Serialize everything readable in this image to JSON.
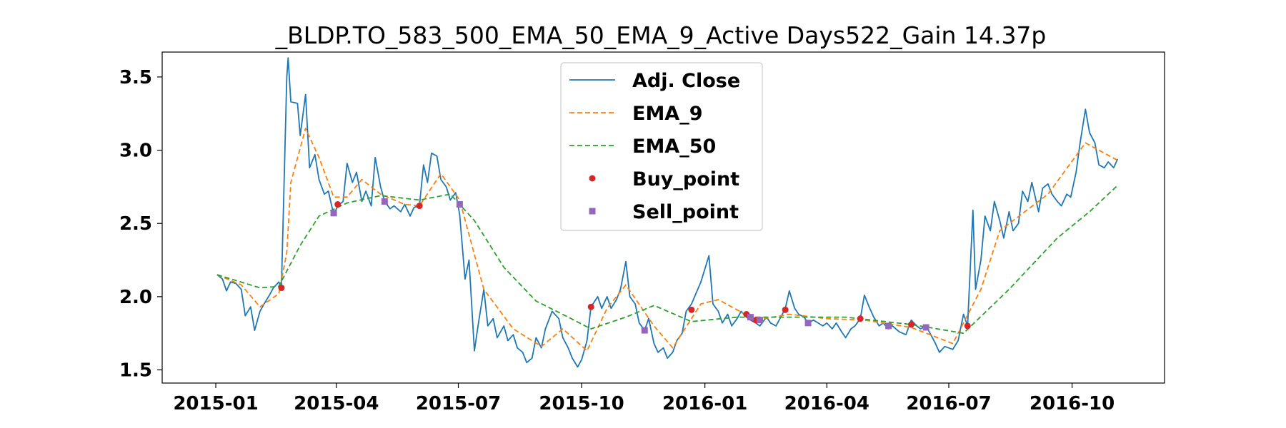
{
  "chart_data": {
    "type": "line",
    "title": "_BLDP.TO_583_500_EMA_50_EMA_9_Active Days522_Gain  14.37p",
    "xlabel": "",
    "ylabel": "",
    "x_ticks": [
      "2015-01",
      "2015-04",
      "2015-07",
      "2015-10",
      "2016-01",
      "2016-04",
      "2016-07",
      "2016-10"
    ],
    "y_ticks": [
      "1.5",
      "2.0",
      "2.5",
      "3.0",
      "3.5"
    ],
    "xlim": [
      "2014-11-22",
      "2016-12-09"
    ],
    "ylim": [
      1.41,
      3.67
    ],
    "grid": false,
    "legend_position": "top-center",
    "series": [
      {
        "name": "Adj. Close",
        "style": "solid",
        "color": "#1f77b4",
        "points": [
          [
            "2015-01-02",
            2.15
          ],
          [
            "2015-01-06",
            2.12
          ],
          [
            "2015-01-09",
            2.04
          ],
          [
            "2015-01-12",
            2.1
          ],
          [
            "2015-01-16",
            2.09
          ],
          [
            "2015-01-20",
            2.05
          ],
          [
            "2015-01-23",
            1.87
          ],
          [
            "2015-01-27",
            1.93
          ],
          [
            "2015-01-30",
            1.77
          ],
          [
            "2015-02-03",
            1.9
          ],
          [
            "2015-02-06",
            1.95
          ],
          [
            "2015-02-10",
            2.01
          ],
          [
            "2015-02-13",
            2.06
          ],
          [
            "2015-02-17",
            2.1
          ],
          [
            "2015-02-19",
            2.06
          ],
          [
            "2015-02-23",
            3.5
          ],
          [
            "2015-02-24",
            3.63
          ],
          [
            "2015-02-26",
            3.33
          ],
          [
            "2015-03-03",
            3.32
          ],
          [
            "2015-03-05",
            3.1
          ],
          [
            "2015-03-09",
            3.38
          ],
          [
            "2015-03-12",
            2.88
          ],
          [
            "2015-03-16",
            2.97
          ],
          [
            "2015-03-19",
            2.8
          ],
          [
            "2015-03-23",
            2.7
          ],
          [
            "2015-03-26",
            2.72
          ],
          [
            "2015-03-30",
            2.56
          ],
          [
            "2015-04-02",
            2.62
          ],
          [
            "2015-04-06",
            2.65
          ],
          [
            "2015-04-09",
            2.91
          ],
          [
            "2015-04-13",
            2.78
          ],
          [
            "2015-04-16",
            2.85
          ],
          [
            "2015-04-20",
            2.65
          ],
          [
            "2015-04-23",
            2.72
          ],
          [
            "2015-04-27",
            2.62
          ],
          [
            "2015-04-30",
            2.95
          ],
          [
            "2015-05-04",
            2.75
          ],
          [
            "2015-05-07",
            2.65
          ],
          [
            "2015-05-11",
            2.6
          ],
          [
            "2015-05-14",
            2.62
          ],
          [
            "2015-05-19",
            2.58
          ],
          [
            "2015-05-22",
            2.63
          ],
          [
            "2015-05-26",
            2.55
          ],
          [
            "2015-05-29",
            2.61
          ],
          [
            "2015-06-02",
            2.62
          ],
          [
            "2015-06-05",
            2.9
          ],
          [
            "2015-06-08",
            2.78
          ],
          [
            "2015-06-11",
            2.98
          ],
          [
            "2015-06-15",
            2.96
          ],
          [
            "2015-06-18",
            2.8
          ],
          [
            "2015-06-22",
            2.75
          ],
          [
            "2015-06-25",
            2.66
          ],
          [
            "2015-06-29",
            2.71
          ],
          [
            "2015-07-02",
            2.56
          ],
          [
            "2015-07-06",
            2.12
          ],
          [
            "2015-07-09",
            2.25
          ],
          [
            "2015-07-13",
            1.63
          ],
          [
            "2015-07-16",
            1.82
          ],
          [
            "2015-07-20",
            2.05
          ],
          [
            "2015-07-23",
            1.8
          ],
          [
            "2015-07-27",
            1.85
          ],
          [
            "2015-07-30",
            1.72
          ],
          [
            "2015-08-04",
            1.8
          ],
          [
            "2015-08-07",
            1.7
          ],
          [
            "2015-08-11",
            1.74
          ],
          [
            "2015-08-14",
            1.65
          ],
          [
            "2015-08-18",
            1.62
          ],
          [
            "2015-08-21",
            1.55
          ],
          [
            "2015-08-25",
            1.58
          ],
          [
            "2015-08-28",
            1.72
          ],
          [
            "2015-09-01",
            1.65
          ],
          [
            "2015-09-04",
            1.78
          ],
          [
            "2015-09-09",
            1.9
          ],
          [
            "2015-09-14",
            1.85
          ],
          [
            "2015-09-17",
            1.72
          ],
          [
            "2015-09-21",
            1.65
          ],
          [
            "2015-09-24",
            1.58
          ],
          [
            "2015-09-28",
            1.52
          ],
          [
            "2015-10-01",
            1.57
          ],
          [
            "2015-10-05",
            1.7
          ],
          [
            "2015-10-08",
            1.93
          ],
          [
            "2015-10-13",
            2.0
          ],
          [
            "2015-10-16",
            1.92
          ],
          [
            "2015-10-20",
            2.0
          ],
          [
            "2015-10-23",
            1.92
          ],
          [
            "2015-10-27",
            1.98
          ],
          [
            "2015-10-30",
            2.05
          ],
          [
            "2015-11-03",
            2.24
          ],
          [
            "2015-11-06",
            2.0
          ],
          [
            "2015-11-10",
            1.95
          ],
          [
            "2015-11-13",
            1.82
          ],
          [
            "2015-11-17",
            1.77
          ],
          [
            "2015-11-20",
            1.85
          ],
          [
            "2015-11-24",
            1.68
          ],
          [
            "2015-11-27",
            1.62
          ],
          [
            "2015-12-01",
            1.65
          ],
          [
            "2015-12-04",
            1.58
          ],
          [
            "2015-12-08",
            1.62
          ],
          [
            "2015-12-11",
            1.7
          ],
          [
            "2015-12-15",
            1.75
          ],
          [
            "2015-12-18",
            1.9
          ],
          [
            "2015-12-22",
            1.95
          ],
          [
            "2015-12-29",
            2.1
          ],
          [
            "2016-01-04",
            2.28
          ],
          [
            "2016-01-07",
            1.95
          ],
          [
            "2016-01-11",
            1.9
          ],
          [
            "2016-01-14",
            1.82
          ],
          [
            "2016-01-18",
            1.88
          ],
          [
            "2016-01-21",
            1.8
          ],
          [
            "2016-01-25",
            1.85
          ],
          [
            "2016-01-28",
            1.9
          ],
          [
            "2016-02-01",
            1.86
          ],
          [
            "2016-02-04",
            1.84
          ],
          [
            "2016-02-08",
            1.82
          ],
          [
            "2016-02-11",
            1.8
          ],
          [
            "2016-02-16",
            1.86
          ],
          [
            "2016-02-19",
            1.82
          ],
          [
            "2016-02-23",
            1.8
          ],
          [
            "2016-02-26",
            1.85
          ],
          [
            "2016-03-01",
            1.92
          ],
          [
            "2016-03-04",
            2.04
          ],
          [
            "2016-03-08",
            1.92
          ],
          [
            "2016-03-11",
            1.88
          ],
          [
            "2016-03-15",
            1.86
          ],
          [
            "2016-03-18",
            1.82
          ],
          [
            "2016-03-22",
            1.84
          ],
          [
            "2016-03-29",
            1.8
          ],
          [
            "2016-04-01",
            1.82
          ],
          [
            "2016-04-05",
            1.78
          ],
          [
            "2016-04-08",
            1.82
          ],
          [
            "2016-04-12",
            1.76
          ],
          [
            "2016-04-15",
            1.72
          ],
          [
            "2016-04-19",
            1.78
          ],
          [
            "2016-04-22",
            1.8
          ],
          [
            "2016-04-26",
            1.85
          ],
          [
            "2016-04-29",
            2.01
          ],
          [
            "2016-05-03",
            1.92
          ],
          [
            "2016-05-06",
            1.86
          ],
          [
            "2016-05-10",
            1.8
          ],
          [
            "2016-05-13",
            1.82
          ],
          [
            "2016-05-17",
            1.78
          ],
          [
            "2016-05-20",
            1.8
          ],
          [
            "2016-05-25",
            1.76
          ],
          [
            "2016-05-30",
            1.74
          ],
          [
            "2016-06-03",
            1.84
          ],
          [
            "2016-06-07",
            1.8
          ],
          [
            "2016-06-10",
            1.78
          ],
          [
            "2016-06-14",
            1.8
          ],
          [
            "2016-06-17",
            1.75
          ],
          [
            "2016-06-21",
            1.68
          ],
          [
            "2016-06-24",
            1.62
          ],
          [
            "2016-06-28",
            1.66
          ],
          [
            "2016-07-04",
            1.64
          ],
          [
            "2016-07-08",
            1.7
          ],
          [
            "2016-07-12",
            1.88
          ],
          [
            "2016-07-15",
            1.8
          ],
          [
            "2016-07-19",
            2.59
          ],
          [
            "2016-07-21",
            2.05
          ],
          [
            "2016-07-25",
            2.25
          ],
          [
            "2016-07-28",
            2.55
          ],
          [
            "2016-08-01",
            2.45
          ],
          [
            "2016-08-04",
            2.65
          ],
          [
            "2016-08-08",
            2.52
          ],
          [
            "2016-08-11",
            2.4
          ],
          [
            "2016-08-15",
            2.58
          ],
          [
            "2016-08-18",
            2.45
          ],
          [
            "2016-08-22",
            2.5
          ],
          [
            "2016-08-25",
            2.72
          ],
          [
            "2016-08-29",
            2.65
          ],
          [
            "2016-09-01",
            2.78
          ],
          [
            "2016-09-06",
            2.58
          ],
          [
            "2016-09-09",
            2.74
          ],
          [
            "2016-09-13",
            2.77
          ],
          [
            "2016-09-16",
            2.7
          ],
          [
            "2016-09-20",
            2.65
          ],
          [
            "2016-09-23",
            2.62
          ],
          [
            "2016-09-27",
            2.7
          ],
          [
            "2016-09-30",
            2.68
          ],
          [
            "2016-10-04",
            2.85
          ],
          [
            "2016-10-07",
            3.05
          ],
          [
            "2016-10-11",
            3.28
          ],
          [
            "2016-10-14",
            3.12
          ],
          [
            "2016-10-18",
            3.05
          ],
          [
            "2016-10-21",
            2.9
          ],
          [
            "2016-10-25",
            2.88
          ],
          [
            "2016-10-28",
            2.92
          ],
          [
            "2016-11-01",
            2.88
          ],
          [
            "2016-11-04",
            2.94
          ]
        ]
      },
      {
        "name": "EMA_9",
        "style": "dashed",
        "color": "#ff7f0e",
        "points": [
          [
            "2015-01-02",
            2.15
          ],
          [
            "2015-01-20",
            2.08
          ],
          [
            "2015-02-03",
            1.93
          ],
          [
            "2015-02-17",
            2.02
          ],
          [
            "2015-02-23",
            2.3
          ],
          [
            "2015-02-26",
            2.78
          ],
          [
            "2015-03-09",
            3.15
          ],
          [
            "2015-03-19",
            2.95
          ],
          [
            "2015-03-30",
            2.68
          ],
          [
            "2015-04-09",
            2.68
          ],
          [
            "2015-04-20",
            2.8
          ],
          [
            "2015-05-04",
            2.7
          ],
          [
            "2015-05-22",
            2.63
          ],
          [
            "2015-06-02",
            2.62
          ],
          [
            "2015-06-18",
            2.84
          ],
          [
            "2015-07-02",
            2.66
          ],
          [
            "2015-07-20",
            2.05
          ],
          [
            "2015-08-11",
            1.78
          ],
          [
            "2015-09-01",
            1.66
          ],
          [
            "2015-09-17",
            1.78
          ],
          [
            "2015-10-05",
            1.63
          ],
          [
            "2015-10-20",
            1.92
          ],
          [
            "2015-11-03",
            2.08
          ],
          [
            "2015-11-24",
            1.8
          ],
          [
            "2015-12-08",
            1.65
          ],
          [
            "2015-12-29",
            1.95
          ],
          [
            "2016-01-11",
            1.98
          ],
          [
            "2016-02-08",
            1.84
          ],
          [
            "2016-03-04",
            1.88
          ],
          [
            "2016-04-01",
            1.85
          ],
          [
            "2016-04-29",
            1.84
          ],
          [
            "2016-06-03",
            1.79
          ],
          [
            "2016-07-04",
            1.68
          ],
          [
            "2016-07-25",
            2.05
          ],
          [
            "2016-08-08",
            2.45
          ],
          [
            "2016-09-13",
            2.7
          ],
          [
            "2016-10-11",
            3.05
          ],
          [
            "2016-11-04",
            2.93
          ]
        ]
      },
      {
        "name": "EMA_50",
        "style": "dashed",
        "color": "#2ca02c",
        "points": [
          [
            "2015-01-02",
            2.15
          ],
          [
            "2015-02-03",
            2.06
          ],
          [
            "2015-02-17",
            2.07
          ],
          [
            "2015-03-05",
            2.35
          ],
          [
            "2015-03-19",
            2.55
          ],
          [
            "2015-04-09",
            2.64
          ],
          [
            "2015-05-04",
            2.69
          ],
          [
            "2015-06-02",
            2.66
          ],
          [
            "2015-06-25",
            2.7
          ],
          [
            "2015-07-13",
            2.52
          ],
          [
            "2015-08-04",
            2.2
          ],
          [
            "2015-08-28",
            1.97
          ],
          [
            "2015-09-21",
            1.86
          ],
          [
            "2015-10-08",
            1.78
          ],
          [
            "2015-11-03",
            1.86
          ],
          [
            "2015-11-24",
            1.94
          ],
          [
            "2015-12-22",
            1.83
          ],
          [
            "2016-01-25",
            1.86
          ],
          [
            "2016-03-04",
            1.86
          ],
          [
            "2016-04-15",
            1.86
          ],
          [
            "2016-06-03",
            1.81
          ],
          [
            "2016-07-12",
            1.75
          ],
          [
            "2016-08-15",
            2.05
          ],
          [
            "2016-09-20",
            2.4
          ],
          [
            "2016-10-14",
            2.58
          ],
          [
            "2016-11-04",
            2.76
          ]
        ]
      }
    ],
    "markers": [
      {
        "name": "Buy_point",
        "shape": "circle",
        "color": "#d62728",
        "points": [
          [
            "2015-02-19",
            2.06
          ],
          [
            "2015-04-02",
            2.63
          ],
          [
            "2015-06-02",
            2.62
          ],
          [
            "2015-10-08",
            1.93
          ],
          [
            "2015-12-22",
            1.91
          ],
          [
            "2016-02-01",
            1.88
          ],
          [
            "2016-02-08",
            1.84
          ],
          [
            "2016-03-01",
            1.91
          ],
          [
            "2016-04-26",
            1.85
          ],
          [
            "2016-06-03",
            1.81
          ],
          [
            "2016-07-15",
            1.8
          ]
        ]
      },
      {
        "name": "Sell_point",
        "shape": "square",
        "color": "#9467bd",
        "points": [
          [
            "2015-03-30",
            2.57
          ],
          [
            "2015-05-07",
            2.65
          ],
          [
            "2015-07-02",
            2.63
          ],
          [
            "2015-11-17",
            1.77
          ],
          [
            "2016-02-04",
            1.86
          ],
          [
            "2016-02-11",
            1.84
          ],
          [
            "2016-03-18",
            1.82
          ],
          [
            "2016-05-17",
            1.8
          ],
          [
            "2016-06-14",
            1.79
          ]
        ]
      }
    ]
  }
}
